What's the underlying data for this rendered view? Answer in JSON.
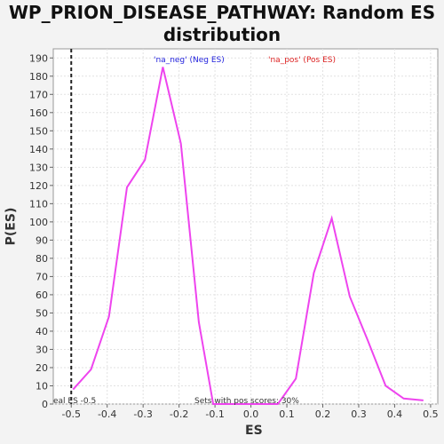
{
  "chart_data": {
    "type": "line",
    "title": "WP_PRION_DISEASE_PATHWAY: Random ES distribution",
    "xlabel": "ES",
    "ylabel": "P(ES)",
    "xlim": [
      -0.55,
      0.52
    ],
    "ylim": [
      0,
      195
    ],
    "grid": true,
    "x_ticks": [
      "-0.5",
      "-0.4",
      "-0.3",
      "-0.2",
      "-0.1",
      "0.0",
      "0.1",
      "0.2",
      "0.3",
      "0.4",
      "0.5"
    ],
    "y_ticks": [
      "0",
      "10",
      "20",
      "30",
      "40",
      "50",
      "60",
      "70",
      "80",
      "90",
      "100",
      "110",
      "120",
      "130",
      "140",
      "150",
      "160",
      "170",
      "180",
      "190"
    ],
    "series": [
      {
        "color": "#ee44ee",
        "x": [
          -0.495,
          -0.445,
          -0.395,
          -0.345,
          -0.295,
          -0.245,
          -0.195,
          -0.145,
          -0.105,
          -0.055,
          0.005,
          0.075,
          0.125,
          0.175,
          0.225,
          0.275,
          0.325,
          0.375,
          0.425,
          0.48
        ],
        "y": [
          8,
          19,
          48,
          119,
          134,
          185,
          143,
          45,
          0,
          0,
          0,
          0,
          14,
          72,
          102,
          59,
          35,
          10,
          3,
          2
        ]
      }
    ],
    "annotations": {
      "neg_label": "'na_neg' (Neg ES)",
      "pos_label": "'na_pos' (Pos ES)",
      "real_es": "eal ES -0.5",
      "pos_scores": "Sets with pos scores: 30%"
    },
    "real_es_value": -0.5,
    "colors": {
      "neg": "#2222dd",
      "pos": "#dd2222",
      "line": "#ee44ee"
    }
  }
}
